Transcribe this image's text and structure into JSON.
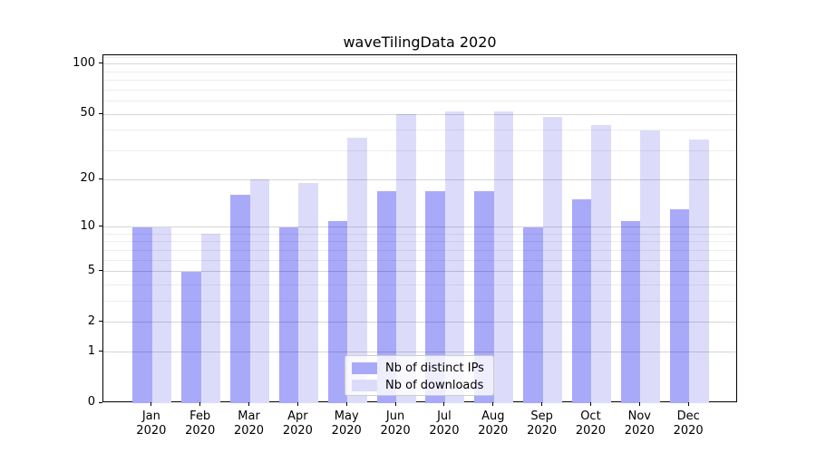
{
  "figure": {
    "title": "waveTilingData 2020"
  },
  "chart_data": {
    "type": "bar",
    "title": "waveTilingData 2020",
    "categories": [
      "Jan 2020",
      "Feb 2020",
      "Mar 2020",
      "Apr 2020",
      "May 2020",
      "Jun 2020",
      "Jul 2020",
      "Aug 2020",
      "Sep 2020",
      "Oct 2020",
      "Nov 2020",
      "Dec 2020"
    ],
    "x_tick_line1": [
      "Jan",
      "Feb",
      "Mar",
      "Apr",
      "May",
      "Jun",
      "Jul",
      "Aug",
      "Sep",
      "Oct",
      "Nov",
      "Dec"
    ],
    "x_tick_line2": "2020",
    "series": [
      {
        "name": "Nb of distinct IPs",
        "color": "#a9a9fa",
        "values": [
          10,
          5,
          16,
          10,
          11,
          17,
          17,
          17,
          10,
          15,
          11,
          13
        ]
      },
      {
        "name": "Nb of downloads",
        "color": "#dcdcfa",
        "values": [
          10,
          9,
          20,
          19,
          36,
          50,
          52,
          52,
          48,
          43,
          40,
          35
        ]
      }
    ],
    "y_scale": "log1p",
    "y_major_ticks": [
      0,
      1,
      2,
      5,
      10,
      20,
      50,
      100
    ],
    "y_minor_ticks": [
      3,
      4,
      6,
      7,
      8,
      9,
      30,
      40,
      60,
      70,
      80,
      90,
      110
    ],
    "ylim": [
      0,
      113
    ],
    "xlabel": "",
    "ylabel": "",
    "grid": "both",
    "legend_position": "lower center",
    "colors": {
      "grid_major": "#d6d6d6",
      "grid_minor": "#ededed",
      "spine": "#000000",
      "text": "#000000",
      "background": "#ffffff"
    }
  }
}
